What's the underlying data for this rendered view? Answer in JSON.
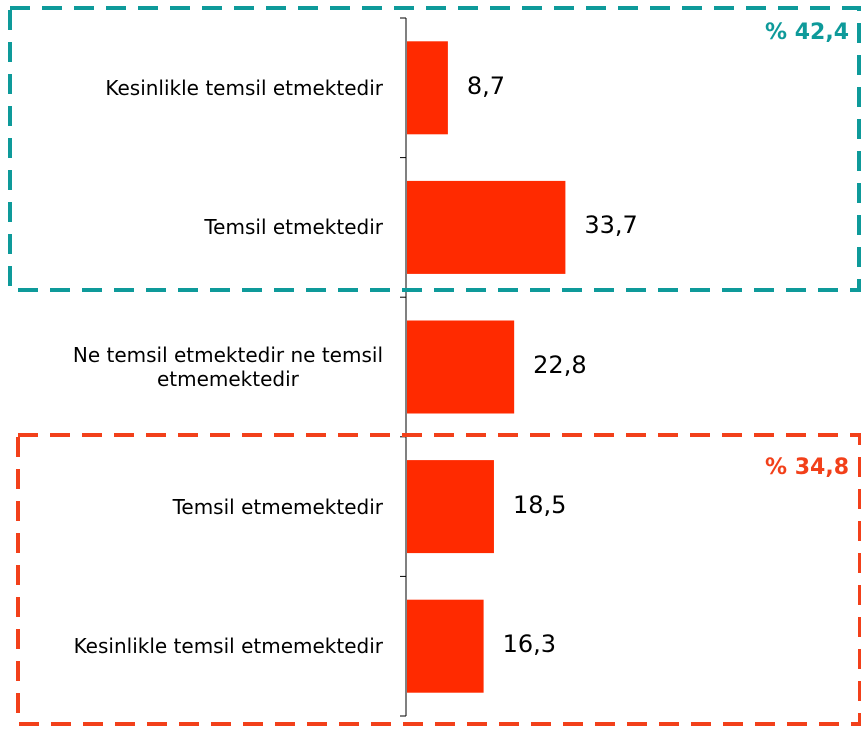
{
  "chart_data": {
    "type": "bar",
    "orientation": "horizontal",
    "categories": [
      "Kesinlikle temsil etmektedir",
      "Temsil etmektedir",
      "Ne temsil etmektedir ne temsil etmemektedir",
      "Temsil etmemektedir",
      "Kesinlikle temsil etmemektedir"
    ],
    "category_lines": [
      [
        "Kesinlikle temsil etmektedir"
      ],
      [
        "Temsil etmektedir"
      ],
      [
        "Ne temsil etmektedir ne temsil",
        "etmemektedir"
      ],
      [
        "Temsil etmemektedir"
      ],
      [
        "Kesinlikle temsil etmemektedir"
      ]
    ],
    "values": [
      8.7,
      33.7,
      22.8,
      18.5,
      16.3
    ],
    "value_labels": [
      "8,7",
      "33,7",
      "22,8",
      "18,5",
      "16,3"
    ],
    "bar_color": "#ff2a00",
    "groups": [
      {
        "label": "% 42,4",
        "members": [
          0,
          1
        ],
        "color": "#0e9a9a"
      },
      {
        "label": "% 34,8",
        "members": [
          3,
          4
        ],
        "color": "#f2401a"
      }
    ]
  }
}
